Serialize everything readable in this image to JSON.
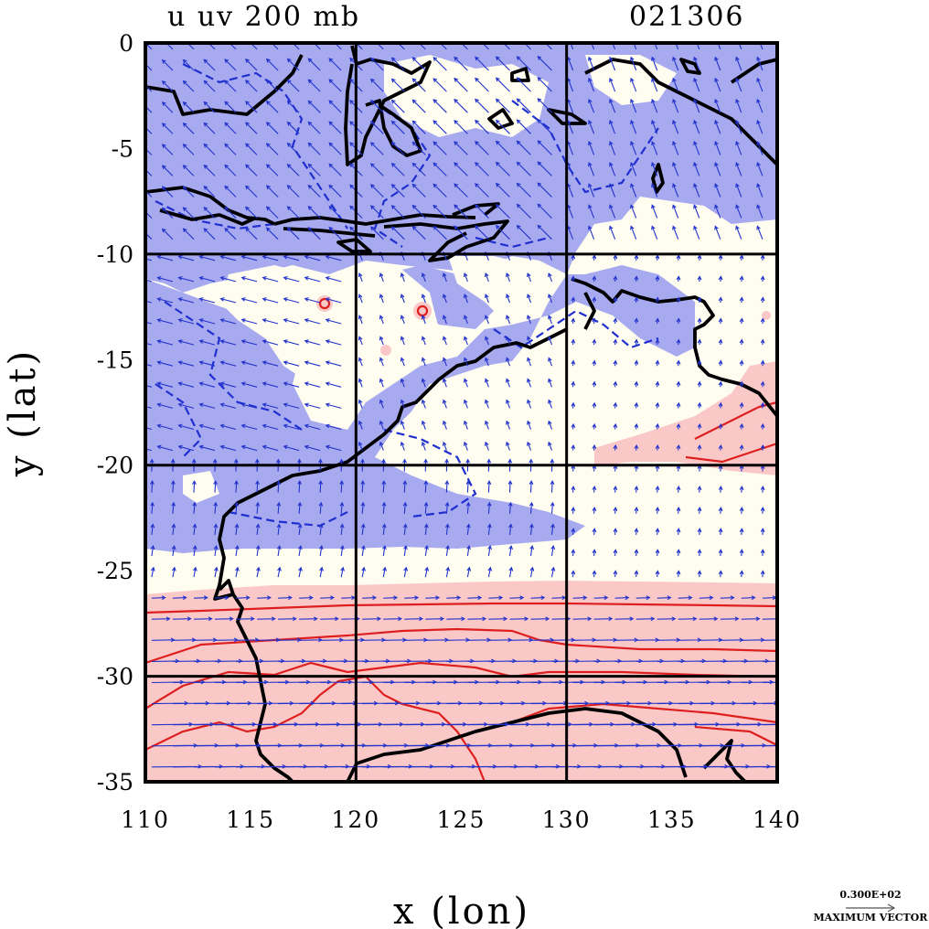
{
  "title_left": "u uv 200 mb",
  "title_right": "021306",
  "chart_data": {
    "type": "map",
    "projection": "lat-lon",
    "xlabel": "x (lon)",
    "ylabel": "y (lat)",
    "xlim": [
      110,
      140
    ],
    "ylim": [
      -35,
      0
    ],
    "xticks": [
      110,
      115,
      120,
      125,
      130,
      135,
      140
    ],
    "yticks": [
      0,
      -5,
      -10,
      -15,
      -20,
      -25,
      -30,
      -35
    ],
    "ytick_labels": [
      "0",
      "-5",
      "-10",
      "-15",
      "-20",
      "-25",
      "-30",
      "-35"
    ],
    "gridlines_lon": [
      120,
      130
    ],
    "gridlines_lat": [
      -10,
      -20,
      -30
    ],
    "shading": {
      "negative_color": "#a8aaf0",
      "positive_color": "#fbc8c8",
      "neutral_color": "#fffdf0",
      "negative_contour_color": "#1f2fd0",
      "positive_contour_color": "#dd1f1f"
    },
    "vector_color": "#2233cc",
    "reference_vector_label": "0.300E+02",
    "reference_vector_caption": "MAXIMUM VECTOR"
  },
  "colors": {
    "coastline": "#000000",
    "grid": "#000000",
    "frame": "#000000"
  }
}
